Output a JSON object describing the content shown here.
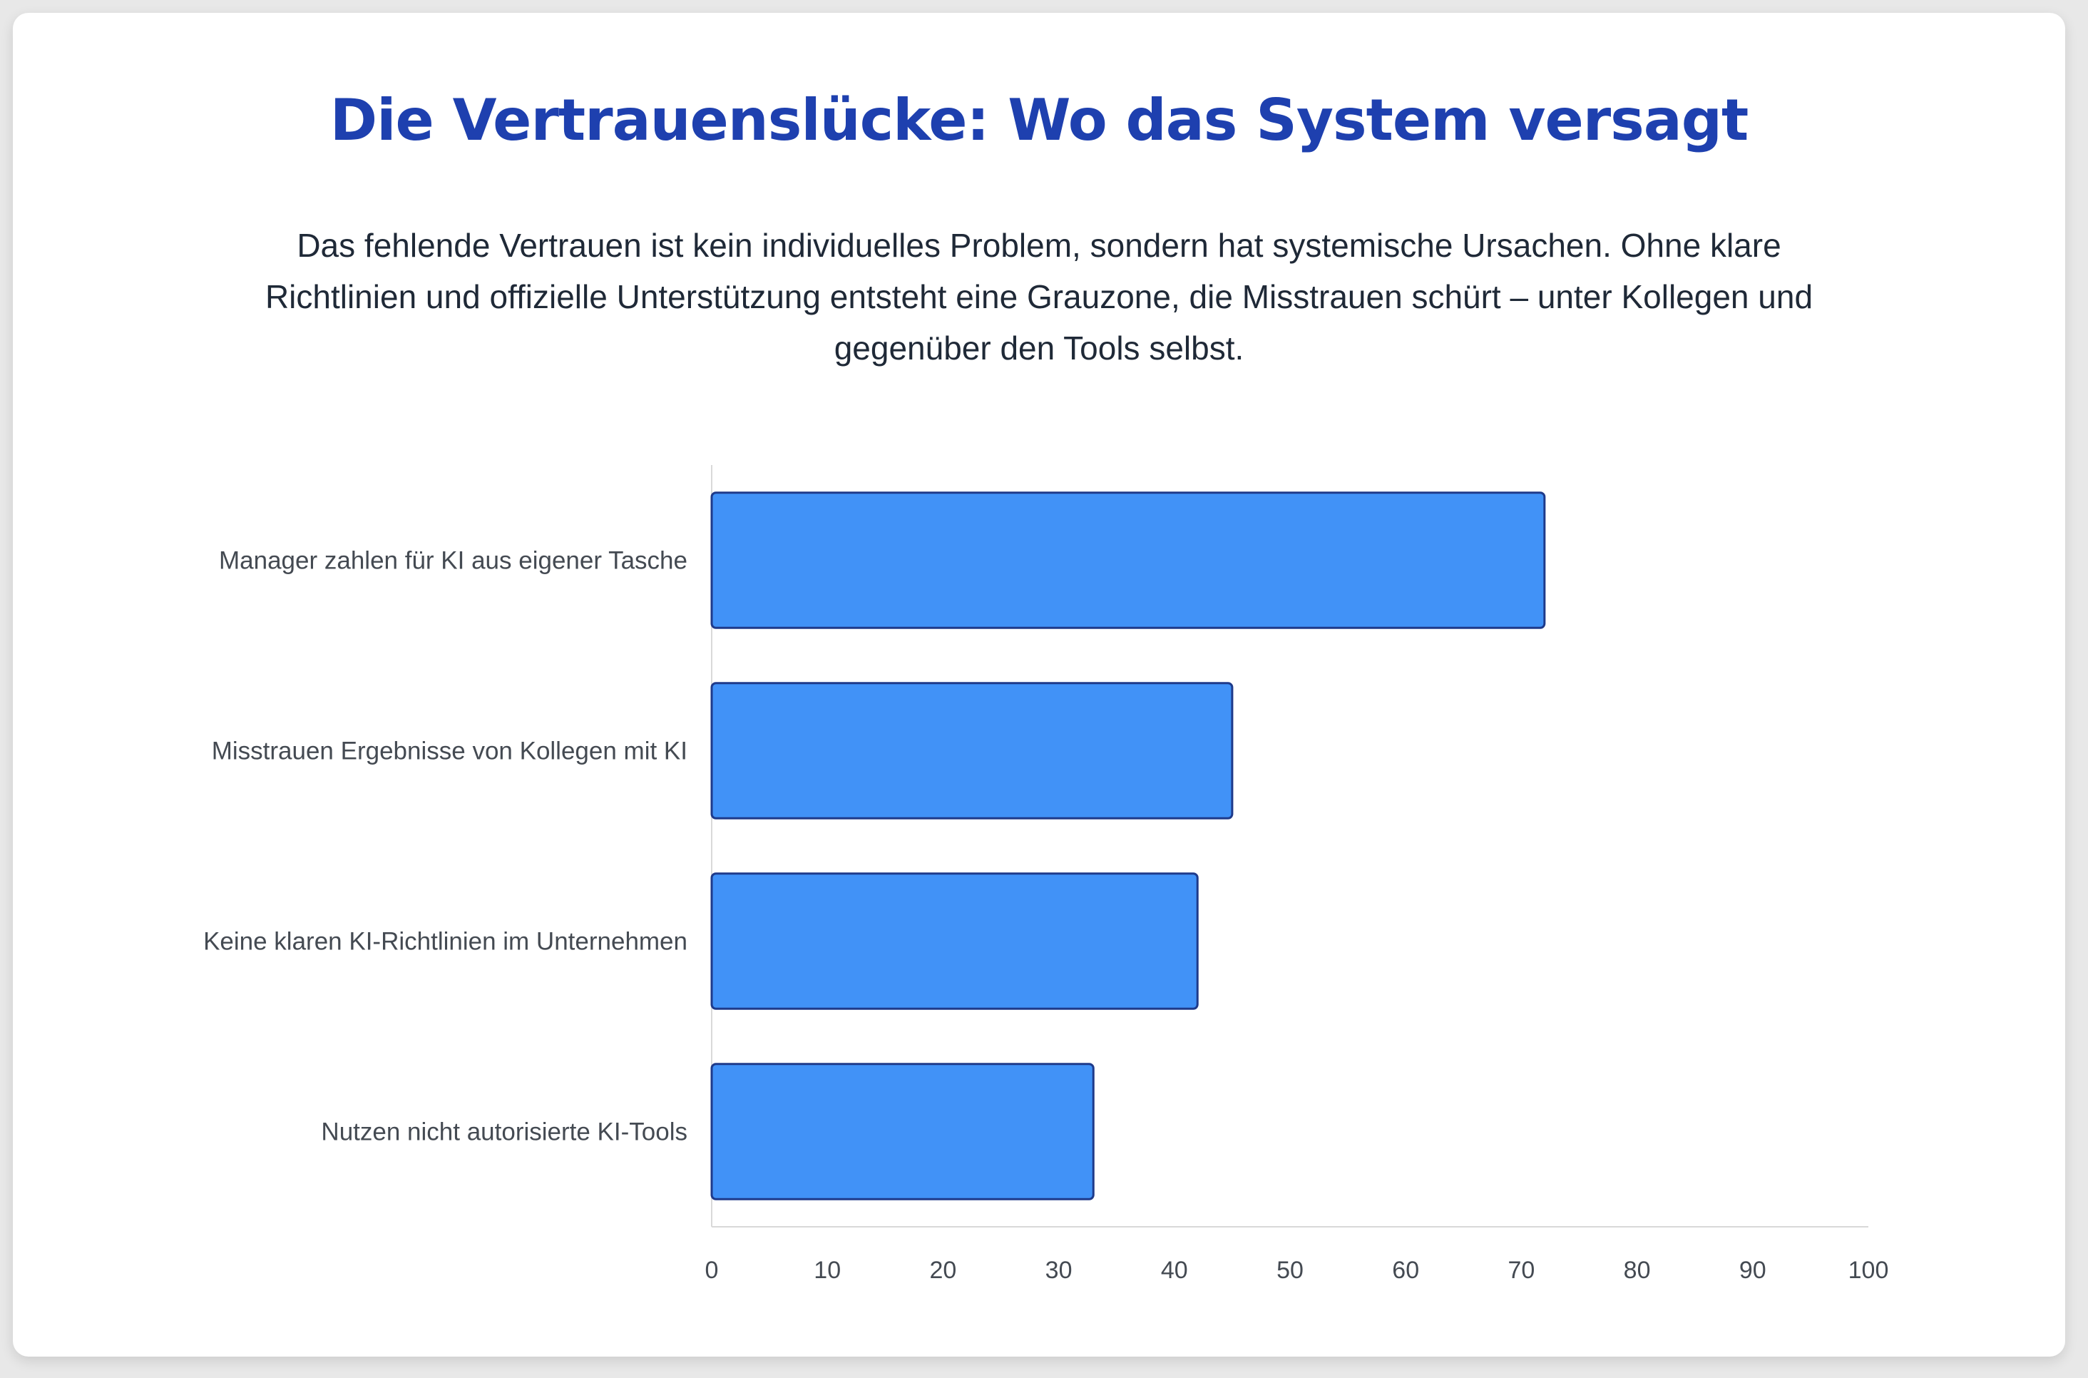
{
  "header": {
    "title": "Die Vertrauenslücke: Wo das System versagt",
    "subtitle": "Das fehlende Vertrauen ist kein individuelles Problem, sondern hat systemische Ursachen. Ohne klare Richtlinien und offizielle Unterstützung entsteht eine Grauzone, die Misstrauen schürt – unter Kollegen und gegenüber den Tools selbst."
  },
  "colors": {
    "title": "#1e40af",
    "bar_fill": "#4192f7",
    "bar_stroke": "#1e3a8a",
    "axis": "#d9d9d9",
    "text": "#444a52"
  },
  "chart_data": {
    "type": "bar",
    "orientation": "horizontal",
    "categories": [
      "Manager zahlen für KI aus eigener Tasche",
      "Misstrauen Ergebnisse von Kollegen mit KI",
      "Keine klaren KI-Richtlinien im Unternehmen",
      "Nutzen nicht autorisierte KI-Tools"
    ],
    "values": [
      72,
      45,
      42,
      33
    ],
    "xlim": [
      0,
      100
    ],
    "xticks": [
      "0",
      "10",
      "20",
      "30",
      "40",
      "50",
      "60",
      "70",
      "80",
      "90",
      "100"
    ],
    "grid": false,
    "legend": "none"
  }
}
